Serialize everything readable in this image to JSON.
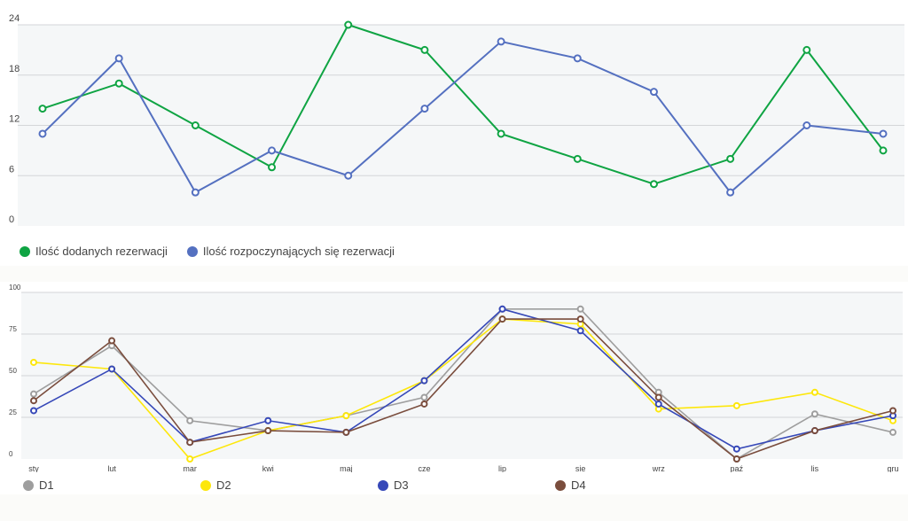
{
  "chart_data": [
    {
      "type": "line",
      "title": "",
      "ylim": [
        0,
        24
      ],
      "yticks": [
        "0",
        "6",
        "12",
        "18",
        "24"
      ],
      "categories": [
        "sty",
        "lut",
        "mar",
        "kwi",
        "maj",
        "cze",
        "lip",
        "sie",
        "wrz",
        "paź",
        "lis",
        "gru"
      ],
      "show_x_labels": false,
      "series": [
        {
          "name": "Ilość dodanych rezerwacji",
          "color": "#0fa443",
          "values": [
            14,
            17,
            12,
            7,
            24,
            21,
            11,
            8,
            5,
            8,
            21,
            9
          ]
        },
        {
          "name": "Ilość rozpoczynających się rezerwacji",
          "color": "#5470c0",
          "values": [
            11,
            20,
            4,
            9,
            6,
            14,
            22,
            20,
            16,
            4,
            12,
            11
          ]
        }
      ],
      "legend": "bottom-left",
      "grid": true
    },
    {
      "type": "line",
      "title": "",
      "ylim": [
        0,
        100
      ],
      "yticks": [
        "0",
        "25",
        "50",
        "75",
        "100"
      ],
      "categories": [
        "sty",
        "lut",
        "mar",
        "kwi",
        "maj",
        "cze",
        "lip",
        "sie",
        "wrz",
        "paź",
        "lis",
        "gru"
      ],
      "show_x_labels": true,
      "series": [
        {
          "name": "D1",
          "color": "#9e9e9e",
          "values": [
            39,
            68,
            23,
            17,
            26,
            37,
            90,
            90,
            40,
            0,
            27,
            16
          ]
        },
        {
          "name": "D2",
          "color": "#fde70b",
          "values": [
            58,
            54,
            0,
            17,
            26,
            47,
            84,
            81,
            30,
            32,
            40,
            23
          ]
        },
        {
          "name": "D3",
          "color": "#3648b8",
          "values": [
            29,
            54,
            10,
            23,
            16,
            47,
            90,
            77,
            33,
            6,
            17,
            26
          ]
        },
        {
          "name": "D4",
          "color": "#7a4d3d",
          "values": [
            35,
            71,
            10,
            17,
            16,
            33,
            84,
            84,
            37,
            0,
            17,
            29
          ]
        }
      ],
      "legend": "bottom",
      "grid": true
    }
  ]
}
